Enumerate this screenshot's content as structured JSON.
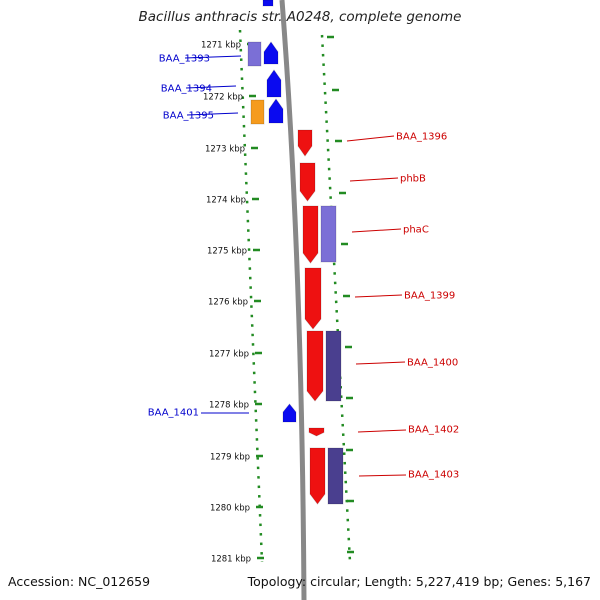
{
  "title": "Bacillus anthracis str. A0248, complete genome",
  "accession": "Accession: NC_012659",
  "summary": "Topology: circular; Length: 5,227,419 bp; Genes: 5,167",
  "ticks": [
    "1271 kbp",
    "1272 kbp",
    "1273 kbp",
    "1274 kbp",
    "1275 kbp",
    "1276 kbp",
    "1277 kbp",
    "1278 kbp",
    "1279 kbp",
    "1280 kbp",
    "1281 kbp"
  ],
  "colors": {
    "minus_strand": "#0a0af0",
    "plus_strand": "#ee1111",
    "purple_feature": "#7b6fd6",
    "dark_purple_feature": "#4a3f8f",
    "orange_feature": "#f59b1e",
    "backbone": "#888888",
    "ruler": "#228b22",
    "label_left": "#0000cc",
    "label_right": "#cc0000"
  },
  "left_labels": [
    "BAA_1393",
    "BAA_1394",
    "BAA_1395",
    "BAA_1401"
  ],
  "right_labels": [
    "BAA_1396",
    "phbB",
    "phaC",
    "BAA_1399",
    "BAA_1400",
    "BAA_1402",
    "BAA_1403"
  ]
}
